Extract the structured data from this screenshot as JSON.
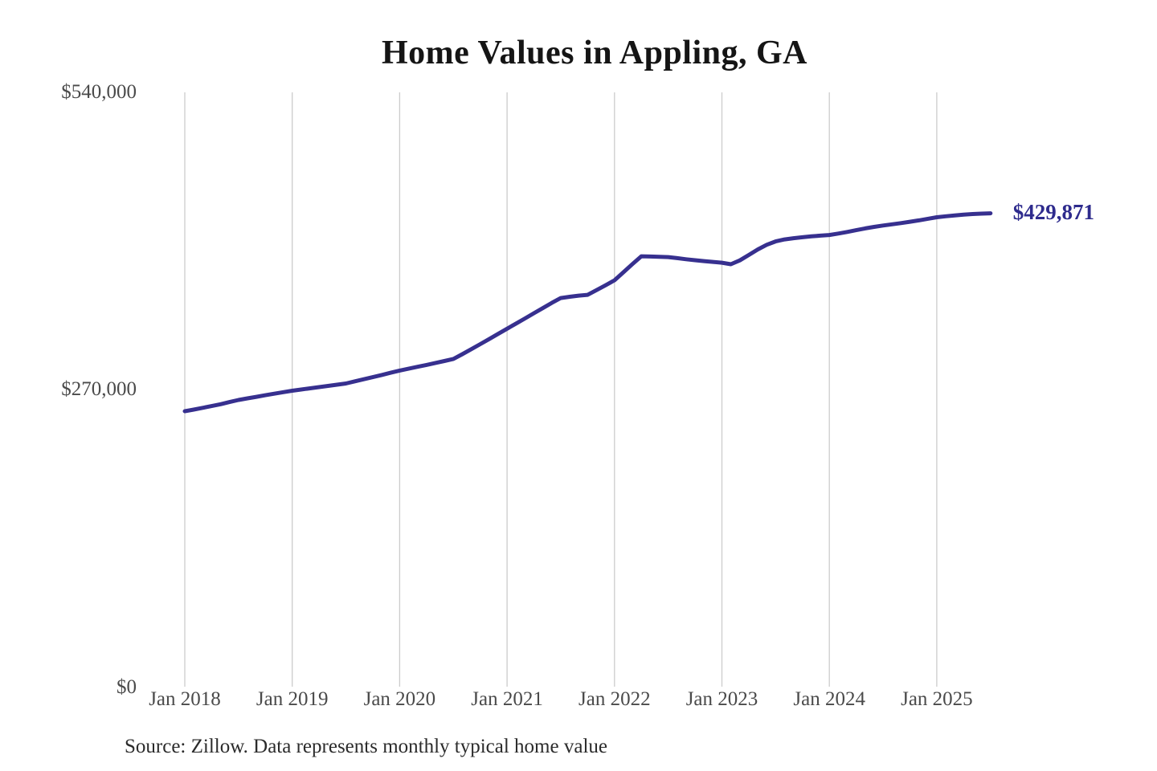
{
  "page": {
    "title": "Home Values in Appling, GA",
    "source_note": "Source: Zillow. Data represents monthly typical home value"
  },
  "chart_data": {
    "type": "line",
    "title": "Home Values in Appling, GA",
    "series_name": "Monthly typical home value",
    "unit": "USD",
    "grid": "vertical-only",
    "legend": "none",
    "ylim": [
      0,
      540000
    ],
    "y_ticks": [
      {
        "label": "$0",
        "value": 0
      },
      {
        "label": "$270,000",
        "value": 270000
      },
      {
        "label": "$540,000",
        "value": 540000
      }
    ],
    "x_ticks": [
      {
        "label": "Jan 2018",
        "month_index": 0
      },
      {
        "label": "Jan 2019",
        "month_index": 12
      },
      {
        "label": "Jan 2020",
        "month_index": 24
      },
      {
        "label": "Jan 2021",
        "month_index": 36
      },
      {
        "label": "Jan 2022",
        "month_index": 48
      },
      {
        "label": "Jan 2023",
        "month_index": 60
      },
      {
        "label": "Jan 2024",
        "month_index": 72
      },
      {
        "label": "Jan 2025",
        "month_index": 84
      }
    ],
    "x": [
      "2018-01",
      "2018-02",
      "2018-03",
      "2018-04",
      "2018-05",
      "2018-06",
      "2018-07",
      "2018-08",
      "2018-09",
      "2018-10",
      "2018-11",
      "2018-12",
      "2019-01",
      "2019-02",
      "2019-03",
      "2019-04",
      "2019-05",
      "2019-06",
      "2019-07",
      "2019-08",
      "2019-09",
      "2019-10",
      "2019-11",
      "2019-12",
      "2020-01",
      "2020-02",
      "2020-03",
      "2020-04",
      "2020-05",
      "2020-06",
      "2020-07",
      "2020-08",
      "2020-09",
      "2020-10",
      "2020-11",
      "2020-12",
      "2021-01",
      "2021-02",
      "2021-03",
      "2021-04",
      "2021-05",
      "2021-06",
      "2021-07",
      "2021-08",
      "2021-09",
      "2021-10",
      "2021-11",
      "2021-12",
      "2022-01",
      "2022-02",
      "2022-03",
      "2022-04",
      "2022-05",
      "2022-06",
      "2022-07",
      "2022-08",
      "2022-09",
      "2022-10",
      "2022-11",
      "2022-12",
      "2023-01",
      "2023-02",
      "2023-03",
      "2023-04",
      "2023-05",
      "2023-06",
      "2023-07",
      "2023-08",
      "2023-09",
      "2023-10",
      "2023-11",
      "2023-12",
      "2024-01",
      "2024-02",
      "2024-03",
      "2024-04",
      "2024-05",
      "2024-06",
      "2024-07",
      "2024-08",
      "2024-09",
      "2024-10",
      "2024-11",
      "2024-12",
      "2025-01",
      "2025-02",
      "2025-03",
      "2025-04",
      "2025-05",
      "2025-06",
      "2025-07"
    ],
    "values": [
      250300,
      251800,
      253400,
      255000,
      256700,
      258600,
      260500,
      262000,
      263400,
      264800,
      266200,
      267600,
      268900,
      270000,
      271100,
      272200,
      273300,
      274400,
      275500,
      277400,
      279300,
      281200,
      283200,
      285200,
      287200,
      288900,
      290600,
      292300,
      294100,
      295900,
      297800,
      302100,
      306600,
      311200,
      315800,
      320500,
      325200,
      329800,
      334500,
      339200,
      343900,
      348600,
      353000,
      354200,
      355200,
      355900,
      360200,
      364600,
      369100,
      376400,
      383800,
      390900,
      390700,
      390400,
      390200,
      389200,
      388200,
      387300,
      386500,
      385800,
      385100,
      383700,
      387200,
      392100,
      397100,
      401300,
      404400,
      406200,
      407300,
      408200,
      409000,
      409600,
      410200,
      411500,
      413000,
      414600,
      416200,
      417600,
      418800,
      419900,
      421000,
      422200,
      423500,
      424900,
      426300,
      427200,
      428000,
      428700,
      429200,
      429600,
      429871
    ],
    "last_value": 429871,
    "end_label": "$429,871",
    "colors": {
      "line": "#37308f",
      "end_label": "#2e2b8d",
      "grid": "#cccccc",
      "tick_text": "#4a4a4a",
      "title_text": "#151515",
      "source_text": "#2b2b2b",
      "background": "#ffffff"
    }
  }
}
